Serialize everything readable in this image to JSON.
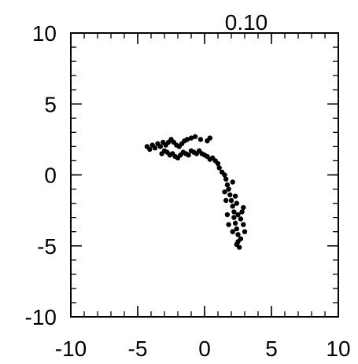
{
  "chart_data": {
    "type": "scatter",
    "title": "0.10",
    "xlabel": "",
    "ylabel": "",
    "xlim": [
      -10,
      10
    ],
    "ylim": [
      -10,
      10
    ],
    "grid": false,
    "x_ticks": [
      {
        "value": -10,
        "label": "-10"
      },
      {
        "value": -5,
        "label": "-5"
      },
      {
        "value": 0,
        "label": "0"
      },
      {
        "value": 5,
        "label": "5"
      },
      {
        "value": 10,
        "label": "10"
      }
    ],
    "y_ticks": [
      {
        "value": 10,
        "label": "10"
      },
      {
        "value": 5,
        "label": "5"
      },
      {
        "value": 0,
        "label": "0"
      },
      {
        "value": -5,
        "label": "-5"
      },
      {
        "value": -10,
        "label": "-10"
      }
    ],
    "minor_tick_step": 1,
    "point_color": "#000000",
    "series": [
      {
        "points": [
          [
            -4.3,
            2.0
          ],
          [
            -4.1,
            1.8
          ],
          [
            -3.9,
            2.1
          ],
          [
            -3.7,
            1.9
          ],
          [
            -3.5,
            2.2
          ],
          [
            -3.3,
            2.0
          ],
          [
            -3.1,
            2.3
          ],
          [
            -2.9,
            2.1
          ],
          [
            -2.7,
            2.3
          ],
          [
            -2.5,
            2.5
          ],
          [
            -2.3,
            2.3
          ],
          [
            -2.1,
            2.1
          ],
          [
            -1.9,
            2.0
          ],
          [
            -1.7,
            2.2
          ],
          [
            -1.5,
            2.4
          ],
          [
            -1.3,
            2.5
          ],
          [
            -1.0,
            2.6
          ],
          [
            -0.7,
            2.7
          ],
          [
            -0.3,
            2.5
          ],
          [
            0.2,
            2.4
          ],
          [
            0.4,
            2.6
          ],
          [
            -3.2,
            1.5
          ],
          [
            -3.0,
            1.7
          ],
          [
            -2.8,
            1.6
          ],
          [
            -2.6,
            1.4
          ],
          [
            -2.4,
            1.5
          ],
          [
            -2.2,
            1.3
          ],
          [
            -2.0,
            1.2
          ],
          [
            -1.8,
            1.4
          ],
          [
            -1.6,
            1.6
          ],
          [
            -1.4,
            1.5
          ],
          [
            -1.2,
            1.4
          ],
          [
            -1.0,
            1.7
          ],
          [
            -0.8,
            1.6
          ],
          [
            -0.6,
            1.5
          ],
          [
            -0.4,
            1.7
          ],
          [
            -0.2,
            1.5
          ],
          [
            0.0,
            1.4
          ],
          [
            0.2,
            1.3
          ],
          [
            0.4,
            1.1
          ],
          [
            0.6,
            1.2
          ],
          [
            0.8,
            1.0
          ],
          [
            1.0,
            0.8
          ],
          [
            1.1,
            0.5
          ],
          [
            1.3,
            0.2
          ],
          [
            1.5,
            0.0
          ],
          [
            1.6,
            -0.3
          ],
          [
            1.7,
            -0.7
          ],
          [
            1.8,
            -1.0
          ],
          [
            1.9,
            -1.4
          ],
          [
            2.0,
            -1.8
          ],
          [
            2.1,
            -2.2
          ],
          [
            2.2,
            -2.6
          ],
          [
            2.2,
            -3.0
          ],
          [
            2.3,
            -3.4
          ],
          [
            2.4,
            -3.8
          ],
          [
            2.5,
            -4.2
          ],
          [
            2.5,
            -4.7
          ],
          [
            2.6,
            -5.1
          ],
          [
            2.7,
            -4.5
          ],
          [
            2.4,
            -4.9
          ],
          [
            2.1,
            -4.0
          ],
          [
            1.8,
            -3.5
          ],
          [
            1.7,
            -2.8
          ],
          [
            2.7,
            -3.1
          ],
          [
            2.8,
            -2.6
          ],
          [
            2.9,
            -3.5
          ],
          [
            3.0,
            -4.0
          ],
          [
            1.6,
            -1.8
          ],
          [
            1.5,
            -1.2
          ],
          [
            2.1,
            -0.5
          ],
          [
            2.3,
            -1.5
          ],
          [
            2.4,
            -2.0
          ],
          [
            2.5,
            -2.8
          ],
          [
            2.9,
            -2.3
          ]
        ]
      }
    ]
  }
}
